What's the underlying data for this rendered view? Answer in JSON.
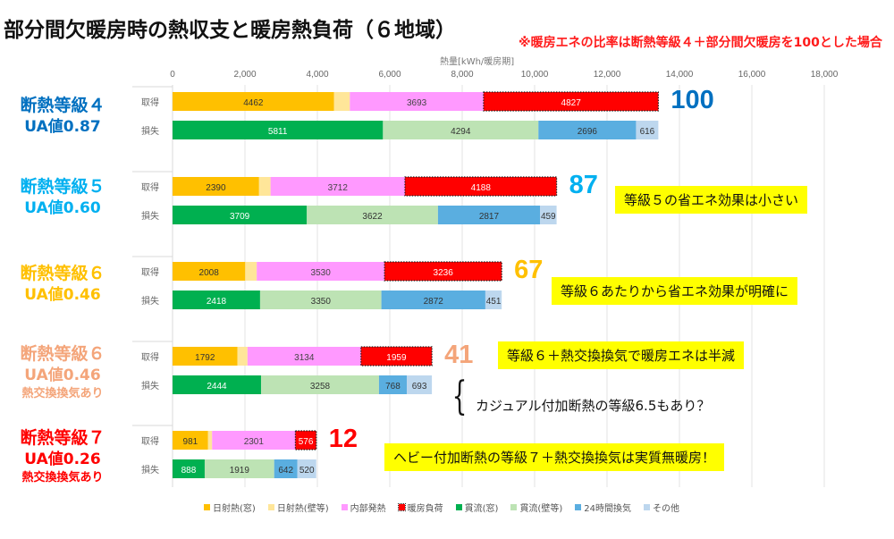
{
  "title": "部分間欠暖房時の熱収支と暖房熱負荷（６地域）",
  "note": "※暖房エネの比率は断熱等級４＋部分間欠暖房を100とした場合",
  "chart_data": {
    "type": "bar",
    "orientation": "horizontal-stacked",
    "title": "部分間欠暖房時の熱収支と暖房熱負荷（６地域）",
    "xlabel": "熱量[kWh/暖房期]",
    "xlim": [
      0,
      19000
    ],
    "xticks": [
      "0",
      "2,000",
      "4,000",
      "6,000",
      "8,000",
      "10,000",
      "12,000",
      "14,000",
      "16,000",
      "18,000"
    ],
    "xtick_values": [
      0,
      2000,
      4000,
      6000,
      8000,
      10000,
      12000,
      14000,
      16000,
      18000
    ],
    "grid": true,
    "legend_position": "bottom",
    "row_labels": {
      "gain": "取得",
      "loss": "損失"
    },
    "series": [
      {
        "key": "solar_window",
        "name": "日射熱(窓)",
        "color": "#ffc000",
        "text_color": "#333333",
        "row": "gain"
      },
      {
        "key": "solar_wall",
        "name": "日射熱(壁等)",
        "color": "#ffe699",
        "text_color": "#333333",
        "row": "gain"
      },
      {
        "key": "internal",
        "name": "内部発熱",
        "color": "#ff99ff",
        "text_color": "#444444",
        "row": "gain"
      },
      {
        "key": "heating_load",
        "name": "暖房負荷",
        "color": "#ff0000",
        "text_color": "#ffffff",
        "row": "gain",
        "dotted_border": true
      },
      {
        "key": "trans_window",
        "name": "貫流(窓)",
        "color": "#00b050",
        "text_color": "#ffffff",
        "row": "loss"
      },
      {
        "key": "trans_wall",
        "name": "貫流(壁等)",
        "color": "#bde3b4",
        "text_color": "#333333",
        "row": "loss"
      },
      {
        "key": "vent24",
        "name": "24時間換気",
        "color": "#5aaee0",
        "text_color": "#333333",
        "row": "loss"
      },
      {
        "key": "other",
        "name": "その他",
        "color": "#bdd7ee",
        "text_color": "#333333",
        "row": "loss"
      }
    ],
    "groups": [
      {
        "label1": "断熱等級４",
        "label2": "UA値0.87",
        "label3": "",
        "color": "#0070c0",
        "index": "100",
        "gain": {
          "solar_window": 4462,
          "solar_wall": 435,
          "internal": 3693,
          "heating_load": 4827
        },
        "loss": {
          "trans_window": 5811,
          "trans_wall": 4294,
          "vent24": 2696,
          "other": 616
        },
        "labels_shown": [
          "solar_window",
          "internal",
          "heating_load",
          "trans_window",
          "trans_wall",
          "vent24",
          "other"
        ]
      },
      {
        "label1": "断熱等級５",
        "label2": "UA値0.60",
        "label3": "",
        "color": "#00b0f0",
        "index": "87",
        "gain": {
          "solar_window": 2390,
          "solar_wall": 317,
          "internal": 3712,
          "heating_load": 4188
        },
        "loss": {
          "trans_window": 3709,
          "trans_wall": 3622,
          "vent24": 2817,
          "other": 459
        },
        "labels_shown": [
          "solar_window",
          "internal",
          "heating_load",
          "trans_window",
          "trans_wall",
          "vent24",
          "other"
        ]
      },
      {
        "label1": "断熱等級６",
        "label2": "UA値0.46",
        "label3": "",
        "color": "#ffc000",
        "index": "67",
        "gain": {
          "solar_window": 2008,
          "solar_wall": 317,
          "internal": 3530,
          "heating_load": 3236
        },
        "loss": {
          "trans_window": 2418,
          "trans_wall": 3350,
          "vent24": 2872,
          "other": 451
        },
        "labels_shown": [
          "solar_window",
          "internal",
          "heating_load",
          "trans_window",
          "trans_wall",
          "vent24",
          "other"
        ]
      },
      {
        "label1": "断熱等級６",
        "label2": "UA値0.46",
        "label3": "熱交換換気あり",
        "color": "#f4a57a",
        "index": "41",
        "gain": {
          "solar_window": 1792,
          "solar_wall": 278,
          "internal": 3134,
          "heating_load": 1959
        },
        "loss": {
          "trans_window": 2444,
          "trans_wall": 3258,
          "vent24": 768,
          "other": 693
        },
        "labels_shown": [
          "solar_window",
          "internal",
          "heating_load",
          "trans_window",
          "trans_wall",
          "vent24",
          "other"
        ]
      },
      {
        "label1": "断熱等級７",
        "label2": "UA値0.26",
        "label3": "熱交換換気あり",
        "color": "#ff0000",
        "index": "12",
        "gain": {
          "solar_window": 981,
          "solar_wall": 111,
          "internal": 2301,
          "heating_load": 576
        },
        "loss": {
          "trans_window": 888,
          "trans_wall": 1919,
          "vent24": 642,
          "other": 520
        },
        "labels_shown": [
          "solar_window",
          "internal",
          "heating_load",
          "trans_window",
          "trans_wall",
          "vent24",
          "other"
        ]
      }
    ]
  },
  "annotations": {
    "callout_grade5": "等級５の省エネ効果は小さい",
    "callout_grade6": "等級６あたりから省エネ効果が明確に",
    "callout_grade6_hr": "等級６＋熱交換換気で暖房エネは半減",
    "note_grade65": "カジュアル付加断熱の等級6.5もあり？",
    "callout_grade7": "ヘビー付加断熱の等級７＋熱交換換気は実質無暖房！",
    "brace": "{"
  }
}
